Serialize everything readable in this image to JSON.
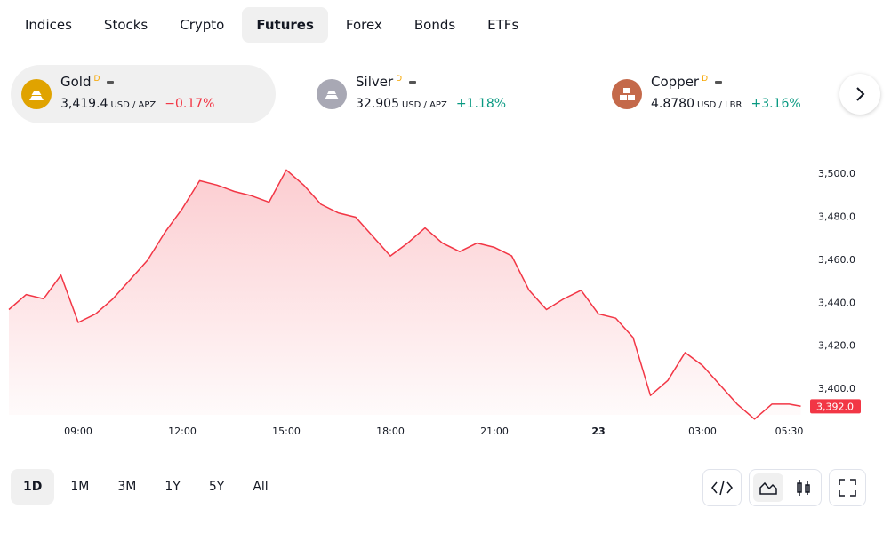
{
  "tabs": [
    "Indices",
    "Stocks",
    "Crypto",
    "Futures",
    "Forex",
    "Bonds",
    "ETFs"
  ],
  "active_tab": "Futures",
  "tickers": [
    {
      "name": "Gold",
      "badge": "D",
      "price": "3,419.4",
      "unit": "USD / APZ",
      "change": "−0.17%",
      "direction": "down",
      "color": "#e0a300"
    },
    {
      "name": "Silver",
      "badge": "D",
      "price": "32.905",
      "unit": "USD / APZ",
      "change": "+1.18%",
      "direction": "up",
      "color": "#a8a8b4"
    },
    {
      "name": "Copper",
      "badge": "D",
      "price": "4.8780",
      "unit": "USD / LBR",
      "change": "+3.16%",
      "direction": "up",
      "color": "#c4694a"
    }
  ],
  "ranges": [
    "1D",
    "1M",
    "3M",
    "1Y",
    "5Y",
    "All"
  ],
  "active_range": "1D",
  "chart_data": {
    "type": "area",
    "color": "#f23645",
    "x": [
      "07:00",
      "07:30",
      "08:00",
      "08:30",
      "09:00",
      "09:30",
      "10:00",
      "10:30",
      "11:00",
      "11:30",
      "12:00",
      "12:30",
      "13:00",
      "13:30",
      "14:00",
      "14:30",
      "15:00",
      "15:30",
      "16:00",
      "16:30",
      "17:00",
      "17:30",
      "18:00",
      "18:30",
      "19:00",
      "19:30",
      "20:00",
      "20:30",
      "21:00",
      "21:30",
      "22:00",
      "22:30",
      "23:00",
      "23:30",
      "00:00",
      "00:30",
      "01:00",
      "01:30",
      "02:00",
      "02:30",
      "03:00",
      "03:30",
      "04:00",
      "04:30",
      "05:00",
      "05:30",
      "05:50"
    ],
    "values": [
      3437,
      3444,
      3442,
      3453,
      3431,
      3435,
      3442,
      3451,
      3460,
      3473,
      3484,
      3497,
      3495,
      3492,
      3490,
      3487,
      3502,
      3495,
      3486,
      3482,
      3480,
      3471,
      3462,
      3468,
      3475,
      3468,
      3464,
      3468,
      3466,
      3462,
      3446,
      3437,
      3442,
      3446,
      3435,
      3433,
      3424,
      3397,
      3404,
      3417,
      3411,
      3402,
      3393,
      3386,
      3393,
      3393,
      3392
    ],
    "ylim": [
      3388,
      3510
    ],
    "yticks": [
      {
        "value": 3400,
        "label": "3,400.0"
      },
      {
        "value": 3420,
        "label": "3,420.0"
      },
      {
        "value": 3440,
        "label": "3,440.0"
      },
      {
        "value": 3460,
        "label": "3,460.0"
      },
      {
        "value": 3480,
        "label": "3,480.0"
      },
      {
        "value": 3500,
        "label": "3,500.0"
      }
    ],
    "xticks": [
      "09:00",
      "12:00",
      "15:00",
      "18:00",
      "21:00",
      {
        "value": "00:00",
        "label": "23"
      },
      "03:00",
      "05:30"
    ],
    "current": {
      "value": 3392,
      "label": "3,392.0"
    }
  }
}
